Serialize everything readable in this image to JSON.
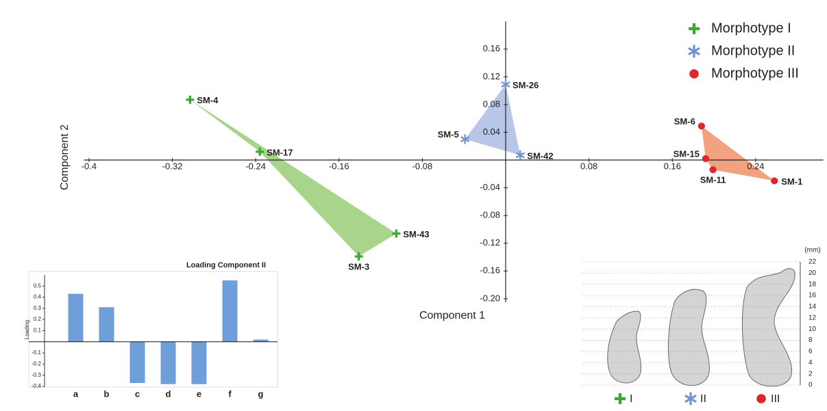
{
  "chart_data": [
    {
      "type": "scatter",
      "x_label": "Component 1",
      "y_label": "Component 2",
      "xlim": [
        -0.405,
        0.305
      ],
      "ylim": [
        -0.205,
        0.2
      ],
      "xticks": [
        -0.4,
        -0.32,
        -0.24,
        -0.16,
        -0.08,
        0.08,
        0.16,
        0.24
      ],
      "yticks": [
        0.16,
        0.12,
        0.08,
        0.04,
        -0.04,
        -0.08,
        -0.12,
        -0.16,
        {
          "value": -0.2,
          "label": "-0.20"
        }
      ],
      "legend": "top right",
      "series": [
        {
          "name": "Morphotype I",
          "color": "#3aaa35",
          "fill": "#a9d48c",
          "marker": "plus",
          "labels": [
            "SM-4",
            "SM-17",
            "SM-3",
            "SM-43"
          ],
          "x": [
            -0.303,
            -0.236,
            -0.141,
            -0.105
          ],
          "values": [
            0.087,
            0.012,
            -0.139,
            -0.106
          ]
        },
        {
          "name": "Morphotype II",
          "color": "#6f94cf",
          "fill": "#bac6e8",
          "marker": "asterisk",
          "labels": [
            "SM-26",
            "SM-5",
            "SM-42"
          ],
          "x": [
            0.0,
            -0.039,
            0.014
          ],
          "values": [
            0.109,
            0.03,
            0.007
          ]
        },
        {
          "name": "Morphotype III",
          "color": "#e0262b",
          "fill": "#f1a280",
          "marker": "circle",
          "labels": [
            "SM-6",
            "SM-15",
            "SM-11",
            "SM-1"
          ],
          "x": [
            0.188,
            0.192,
            0.199,
            0.258
          ],
          "values": [
            0.049,
            0.002,
            -0.014,
            -0.03
          ]
        }
      ]
    },
    {
      "type": "bar",
      "title": "Loading Component II",
      "y_label": "Loading",
      "categories": [
        "a",
        "b",
        "c",
        "d",
        "e",
        "f",
        "g"
      ],
      "values": [
        0.43,
        0.31,
        -0.37,
        -0.38,
        -0.38,
        0.55,
        0.02
      ],
      "color": "#6f9fd8",
      "ylim": [
        -0.4,
        0.63
      ],
      "yticks": [
        0.5,
        0.4,
        0.3,
        0.2,
        0.1,
        -0.1,
        -0.2,
        -0.3,
        -0.4
      ]
    },
    {
      "type": "scale",
      "y_label": "(mm)",
      "ylim": [
        0,
        22
      ],
      "yticks": [
        0,
        2,
        4,
        6,
        8,
        10,
        12,
        14,
        16,
        18,
        20,
        22
      ],
      "legend_labels": [
        "I",
        "II",
        "III"
      ]
    }
  ]
}
